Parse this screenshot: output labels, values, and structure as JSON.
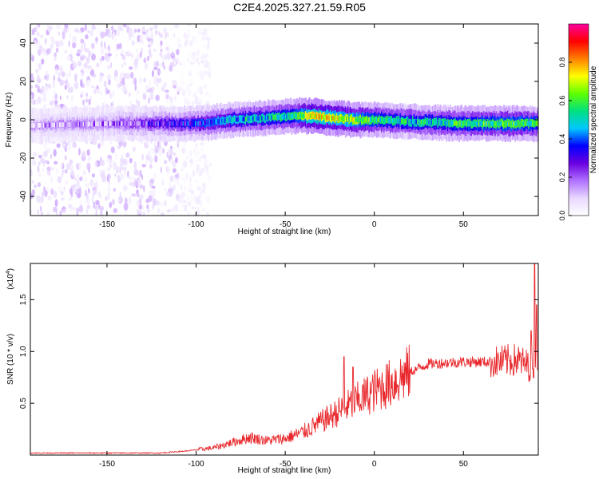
{
  "figure": {
    "title": "C2E4.2025.327.21.59.R05"
  },
  "colorbar": {
    "label": "Normalized spectral amplitude",
    "ticks": [
      "0.0",
      "0.2",
      "0.4",
      "0.6",
      "0.8"
    ],
    "tick_values": [
      0.0,
      0.2,
      0.4,
      0.6,
      0.8
    ],
    "range": [
      0,
      1
    ],
    "colormap": [
      "#ffffff",
      "#e8d8ff",
      "#b070ff",
      "#6a00e0",
      "#0000ff",
      "#00c8ff",
      "#00e080",
      "#60ff00",
      "#ffff00",
      "#ff8000",
      "#ff0000",
      "#ff00a0"
    ]
  },
  "chart_data": [
    {
      "type": "heatmap",
      "title": "C2E4.2025.327.21.59.R05",
      "xlabel": "Height of straight line (km)",
      "ylabel": "Frequency (Hz)",
      "xlim": [
        -193,
        92
      ],
      "ylim": [
        -50,
        50
      ],
      "xticks": [
        -150,
        -100,
        -50,
        0,
        50
      ],
      "xtick_labels": [
        "-150",
        "-100",
        "-50",
        "0",
        "50"
      ],
      "yticks": [
        -40,
        -20,
        0,
        20,
        40
      ],
      "ytick_labels": [
        "-40",
        "-20",
        "0",
        "20",
        "40"
      ],
      "ridge_x": [
        -193,
        -150,
        -100,
        -80,
        -60,
        -45,
        -35,
        -25,
        -10,
        0,
        20,
        50,
        80,
        92
      ],
      "ridge_y": [
        -3,
        -2,
        -2,
        0,
        1,
        2,
        2,
        1,
        0,
        0,
        -1,
        -2,
        -2,
        -2
      ],
      "ridge_amplitude": [
        0.12,
        0.15,
        0.35,
        0.45,
        0.5,
        0.55,
        0.75,
        0.7,
        0.65,
        0.55,
        0.5,
        0.55,
        0.6,
        0.55
      ],
      "noise_region_x": [
        -193,
        -100
      ]
    },
    {
      "type": "line",
      "xlabel": "Height of straight line (km)",
      "ylabel": "SNR (10 * v/v)",
      "scale_label": "(x10",
      "scale_exponent": "4",
      "xlim": [
        -193,
        92
      ],
      "ylim": [
        0,
        1.85
      ],
      "xticks": [
        -150,
        -100,
        -50,
        0,
        50
      ],
      "xtick_labels": [
        "-150",
        "-100",
        "-50",
        "0",
        "50"
      ],
      "yticks": [
        0.5,
        1.0,
        1.5
      ],
      "ytick_labels": [
        "0.5",
        "1.0",
        "1.5"
      ],
      "series": [
        {
          "name": "SNR",
          "color": "#e8282c",
          "trend_x": [
            -193,
            -120,
            -105,
            -90,
            -80,
            -70,
            -60,
            -50,
            -40,
            -30,
            -20,
            -10,
            0,
            10,
            20,
            30,
            50,
            70,
            80,
            88,
            92
          ],
          "trend_y": [
            0.02,
            0.02,
            0.04,
            0.07,
            0.12,
            0.17,
            0.14,
            0.16,
            0.22,
            0.32,
            0.42,
            0.52,
            0.62,
            0.7,
            0.8,
            0.88,
            0.9,
            0.9,
            0.92,
            0.85,
            0.95
          ],
          "spikes_x": [
            -17,
            -12,
            88,
            90,
            91
          ],
          "spikes_y": [
            0.95,
            0.85,
            1.2,
            1.85,
            1.45
          ]
        }
      ]
    }
  ]
}
